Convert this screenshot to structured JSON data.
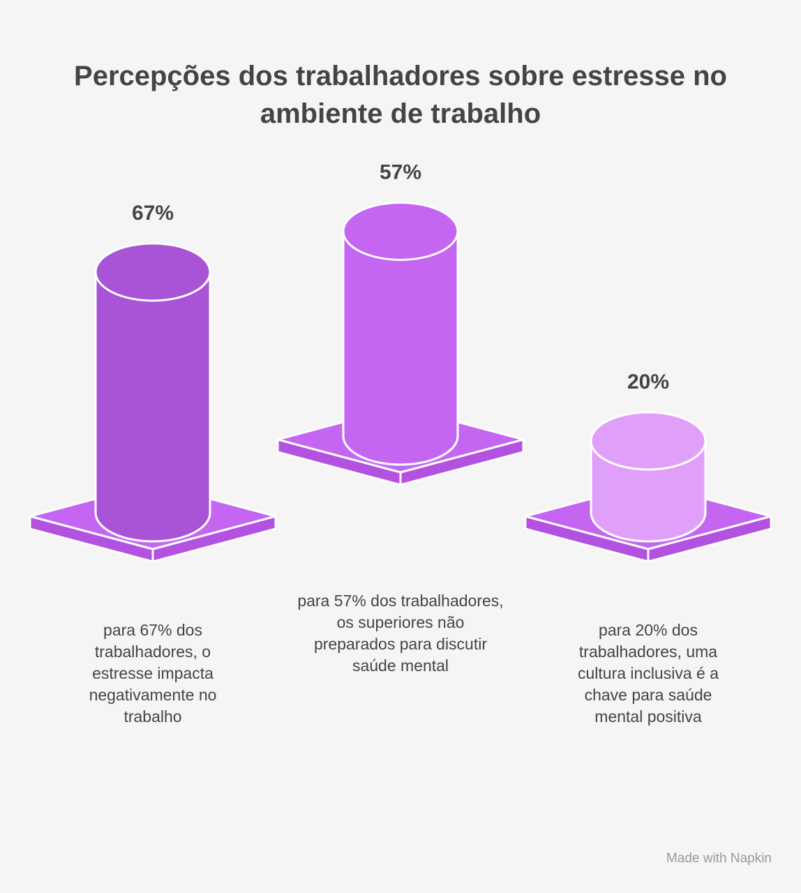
{
  "chart_data": {
    "type": "cylinder-bar",
    "title": "Percepções dos trabalhadores sobre estresse no ambiente de trabalho",
    "categories": [
      "para 67% dos trabalhadores, o estresse impacta negativamente no trabalho",
      "para 57% dos trabalhadores, os superiores não preparados para discutir saúde mental",
      "para 20% dos trabalhadores, uma cultura inclusiva é a chave para saúde mental positiva"
    ],
    "values": [
      67,
      57,
      20
    ],
    "value_labels": [
      "67%",
      "57%",
      "20%"
    ],
    "colors": [
      "#a953d6",
      "#c466f2",
      "#e0a0fa"
    ],
    "base_color": "#c466f2",
    "footer": "Made with Napkin"
  }
}
